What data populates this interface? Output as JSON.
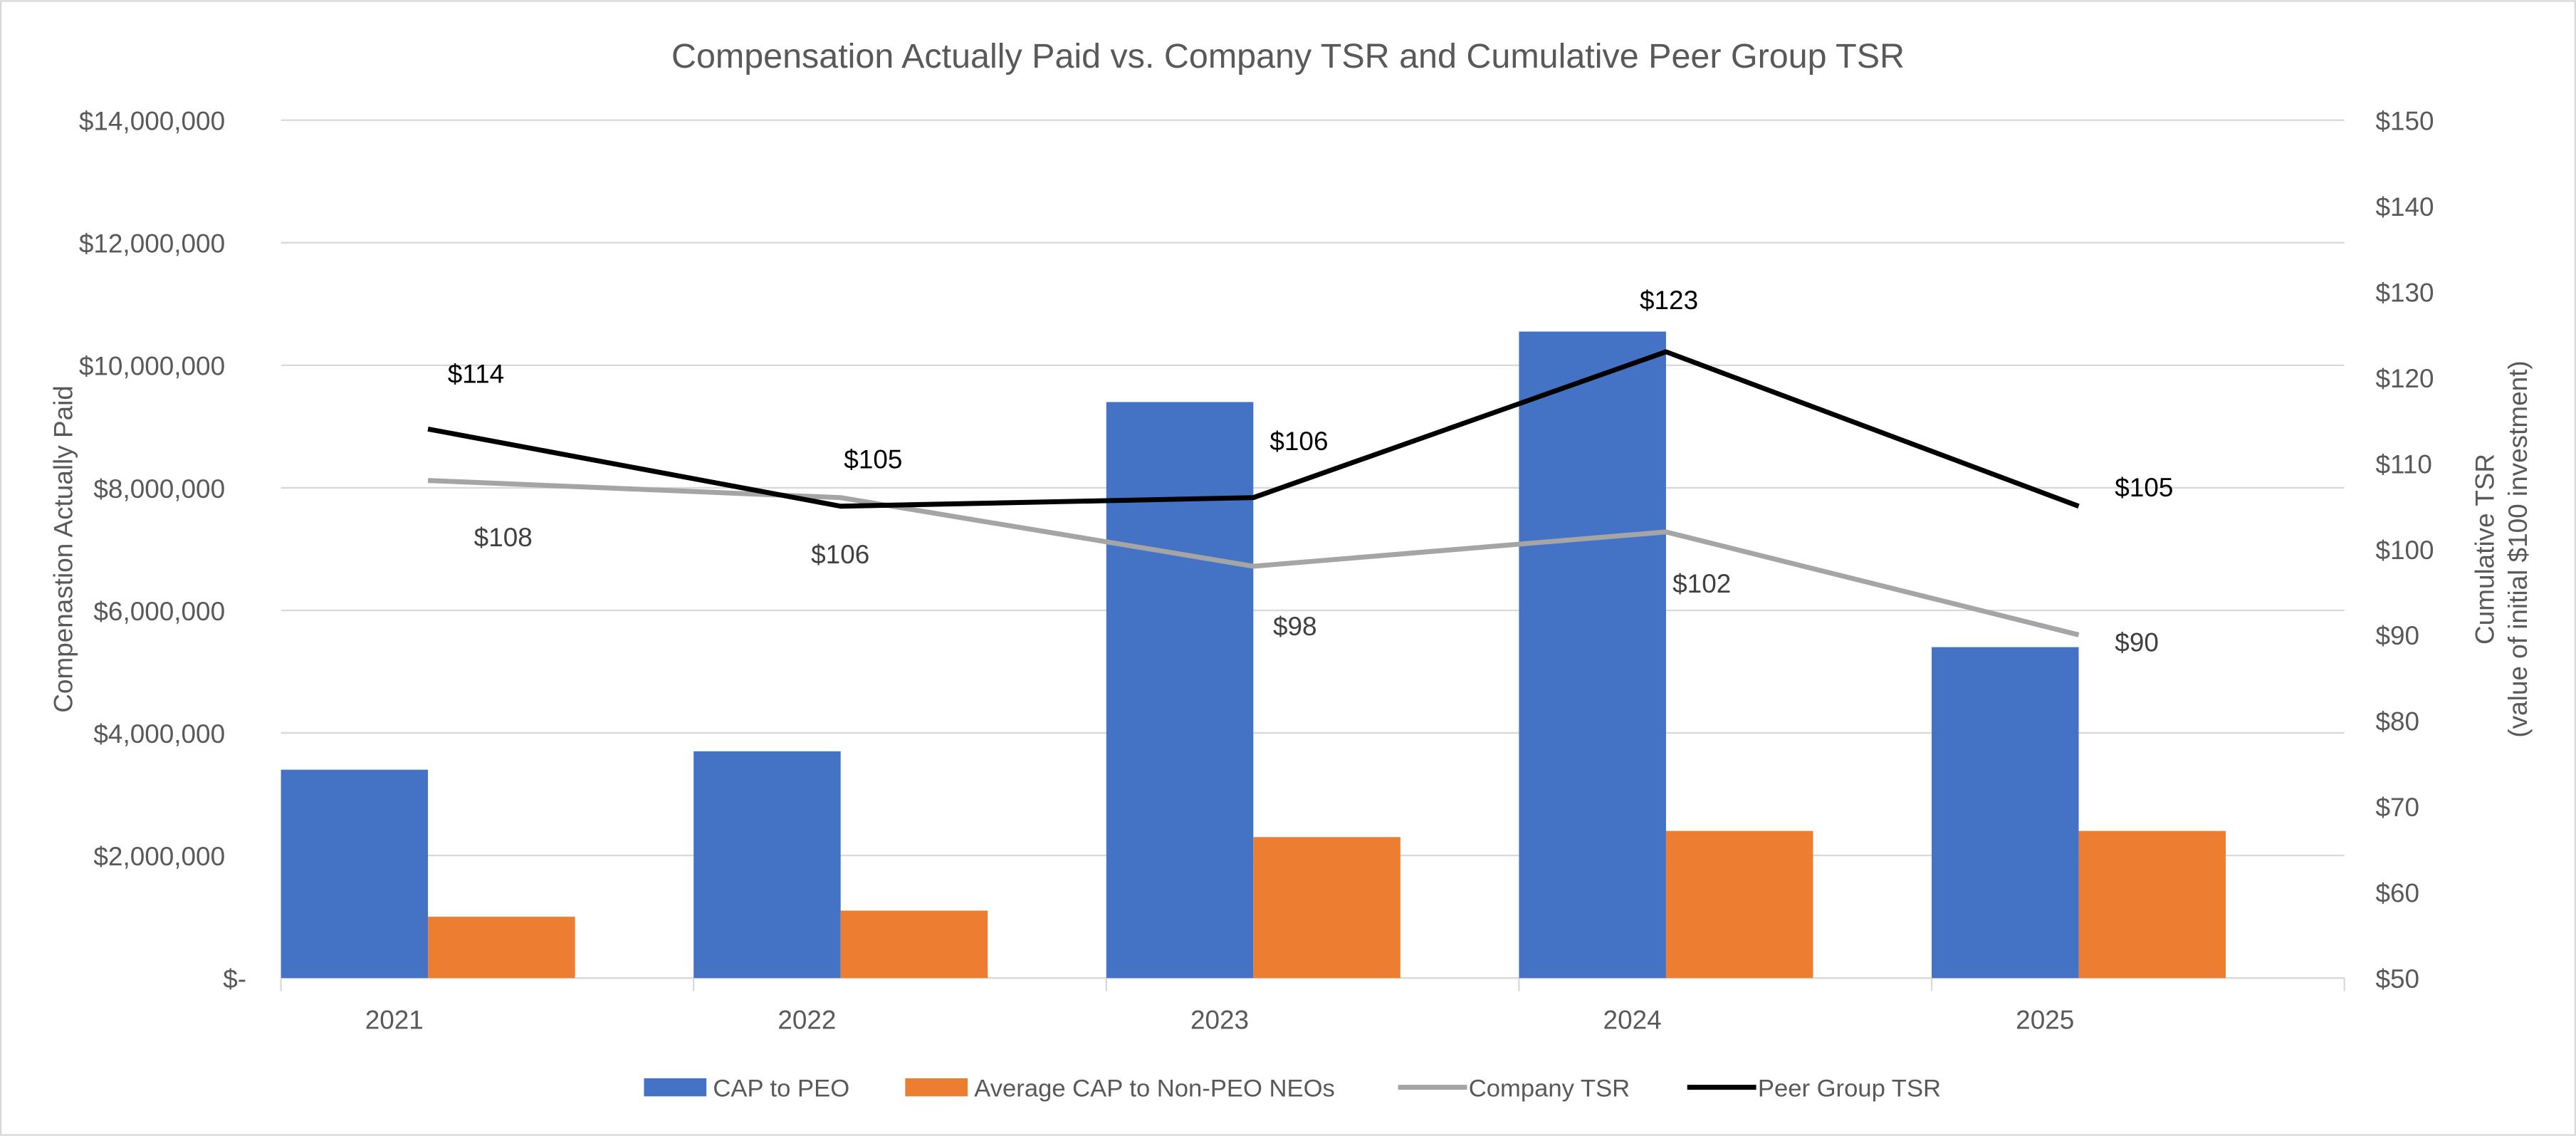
{
  "chart_data": {
    "type": "bar+line",
    "title": "Compensation Actually Paid vs. Company TSR and Cumulative Peer Group TSR",
    "ylabel_left": "Compenastion Actually Paid",
    "ylabel_right": [
      "Cumulative TSR",
      "(value of initial $100 investment)"
    ],
    "categories": [
      "2021",
      "2022",
      "2023",
      "2024",
      "2025"
    ],
    "ylim_left": [
      0,
      14000000
    ],
    "ylim_right": [
      50,
      150
    ],
    "yticks_left": [
      "$-",
      "$2,000,000",
      "$4,000,000",
      "$6,000,000",
      "$8,000,000",
      "$10,000,000",
      "$12,000,000",
      "$14,000,000"
    ],
    "yticks_right": [
      "$50",
      "$60",
      "$70",
      "$80",
      "$90",
      "$100",
      "$110",
      "$120",
      "$130",
      "$140",
      "$150"
    ],
    "grid": true,
    "legend_position": "bottom",
    "bar_series": [
      {
        "name": "CAP to PEO",
        "color": "#4472C4",
        "values": [
          3400000,
          3700000,
          9400000,
          10550000,
          5400000
        ]
      },
      {
        "name": "Average CAP to Non-PEO NEOs",
        "color": "#ED7D31",
        "values": [
          1000000,
          1100000,
          2300000,
          2400000,
          2400000
        ]
      }
    ],
    "line_series": [
      {
        "name": "Company TSR",
        "color": "#A5A5A5",
        "axis": "right",
        "values": [
          108,
          106,
          98,
          102,
          90
        ],
        "labels": [
          "$108",
          "$106",
          "$98",
          "$102",
          "$90"
        ]
      },
      {
        "name": "Peer Group TSR",
        "color": "#000000",
        "axis": "right",
        "values": [
          114,
          105,
          106,
          123,
          105
        ],
        "labels": [
          "$114",
          "$105",
          "$106",
          "$123",
          "$105"
        ]
      }
    ]
  }
}
